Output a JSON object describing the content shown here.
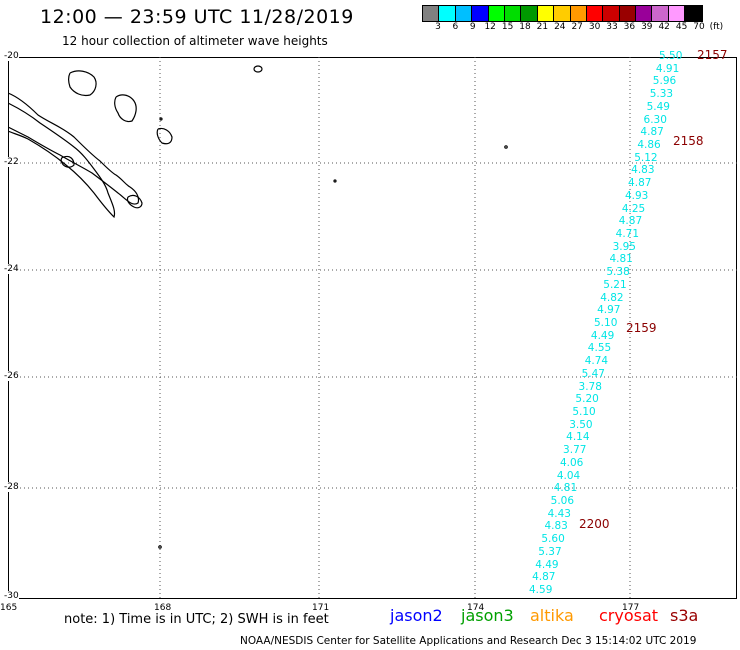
{
  "header": {
    "title": "12:00 — 23:59 UTC 11/28/2019",
    "subtitle": "12 hour collection of altimeter wave heights"
  },
  "legend": {
    "colors": [
      "#808080",
      "#00ffff",
      "#00bfff",
      "#0000ff",
      "#00ff00",
      "#00dd00",
      "#009900",
      "#ffff00",
      "#ffcc00",
      "#ff9900",
      "#ff0000",
      "#cc0000",
      "#990000",
      "#990099",
      "#cc66cc",
      "#ff99ff",
      "#000000"
    ],
    "labels": [
      "3",
      "6",
      "9",
      "12",
      "15",
      "18",
      "21",
      "24",
      "27",
      "30",
      "33",
      "36",
      "39",
      "42",
      "45",
      "70",
      "(ft)"
    ]
  },
  "map": {
    "lat_labels": [
      "-20",
      "-22",
      "-24",
      "-26",
      "-28",
      "-30"
    ],
    "lon_labels": [
      "165",
      "168",
      "171",
      "174",
      "177"
    ],
    "swh_values": [
      "5.50",
      "4.91",
      "5.96",
      "5.33",
      "5.49",
      "6.30",
      "4.87",
      "4.86",
      "5.12",
      "4.83",
      "4.87",
      "4.93",
      "4.25",
      "4.87",
      "4.71",
      "3.95",
      "4.81",
      "5.38",
      "5.21",
      "4.82",
      "4.97",
      "5.10",
      "4.49",
      "4.55",
      "4.74",
      "5.47",
      "3.78",
      "5.20",
      "5.10",
      "3.50",
      "4.14",
      "3.77",
      "4.06",
      "4.04",
      "4.81",
      "5.06",
      "4.43",
      "4.83",
      "5.60",
      "5.37",
      "4.49",
      "4.87",
      "4.59"
    ],
    "swh_color": "#00e5e5",
    "time_labels": [
      "2157",
      "2158",
      "2159",
      "2200"
    ],
    "time_color": "#8b0000"
  },
  "note": "note: 1) Time is in UTC; 2) SWH is in feet",
  "satellites": [
    {
      "name": "jason2",
      "color": "#0000ff"
    },
    {
      "name": "jason3",
      "color": "#00a000"
    },
    {
      "name": "altika",
      "color": "#ff9900"
    },
    {
      "name": "cryosat",
      "color": "#ff0000"
    },
    {
      "name": "s3a",
      "color": "#990000"
    }
  ],
  "footer": "NOAA/NESDIS Center for Satellite Applications and Research    Dec  3 15:14:02 UTC 2019"
}
